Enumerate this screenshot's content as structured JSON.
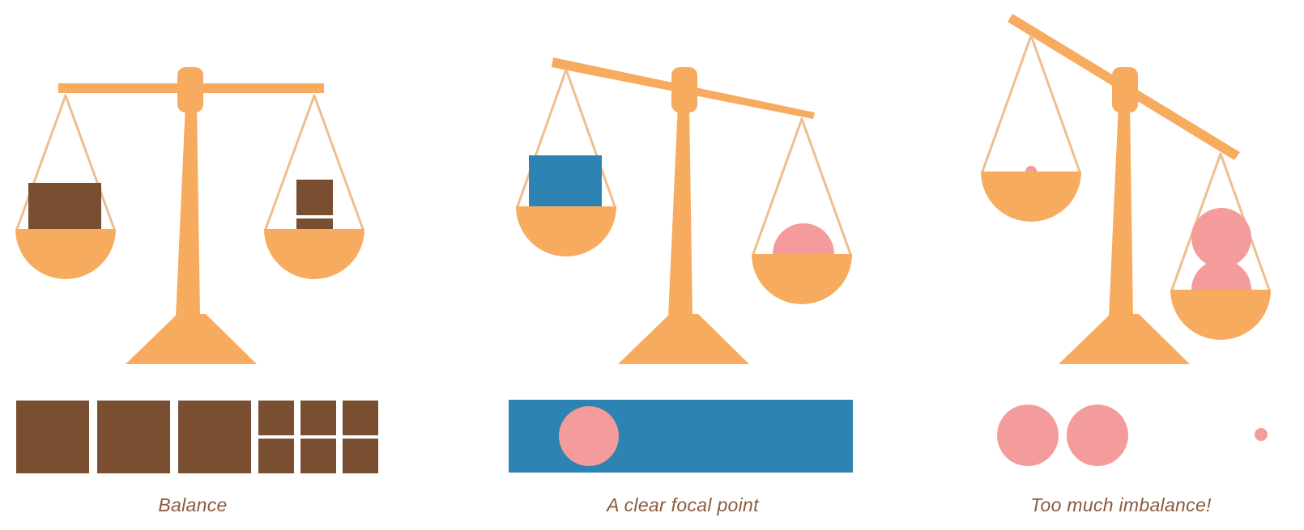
{
  "colors": {
    "scale": "#f7ab5f",
    "rope": "#edbf8f",
    "brown": "#7a4f31",
    "blue": "#2d84b3",
    "pink": "#f49b9b",
    "caption": "#8a5a3c",
    "background": "#ffffff"
  },
  "panels": [
    {
      "caption": "Balance",
      "beam_state": "level"
    },
    {
      "caption": "A clear focal point",
      "beam_state": "slightly tilted"
    },
    {
      "caption": "Too much imbalance!",
      "beam_state": "strongly tilted"
    }
  ]
}
